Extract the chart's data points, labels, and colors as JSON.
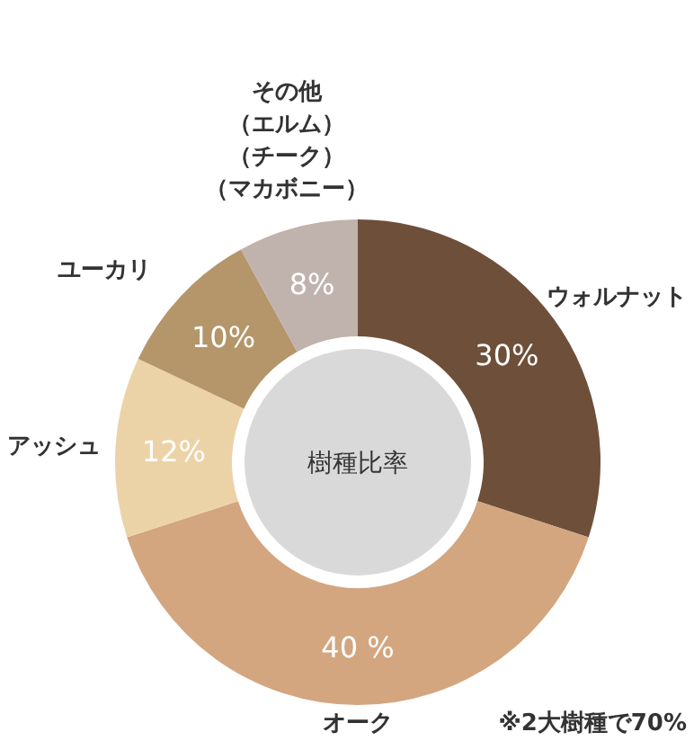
{
  "chart_data": {
    "type": "donut",
    "title": "樹種比率",
    "categories": [
      "ウォルナット",
      "オーク",
      "アッシュ",
      "ユーカリ",
      "その他（エルム）（チーク）（マカボニー）"
    ],
    "values": [
      30,
      40,
      12,
      10,
      8
    ],
    "colors": [
      "#6e4f3a",
      "#d3a67f",
      "#ecd3a7",
      "#b5956a",
      "#c0b3ad"
    ],
    "value_labels": [
      "30%",
      "40 %",
      "12%",
      "10%",
      "8%"
    ],
    "annotations": [
      "※2大樹種で70%"
    ]
  }
}
